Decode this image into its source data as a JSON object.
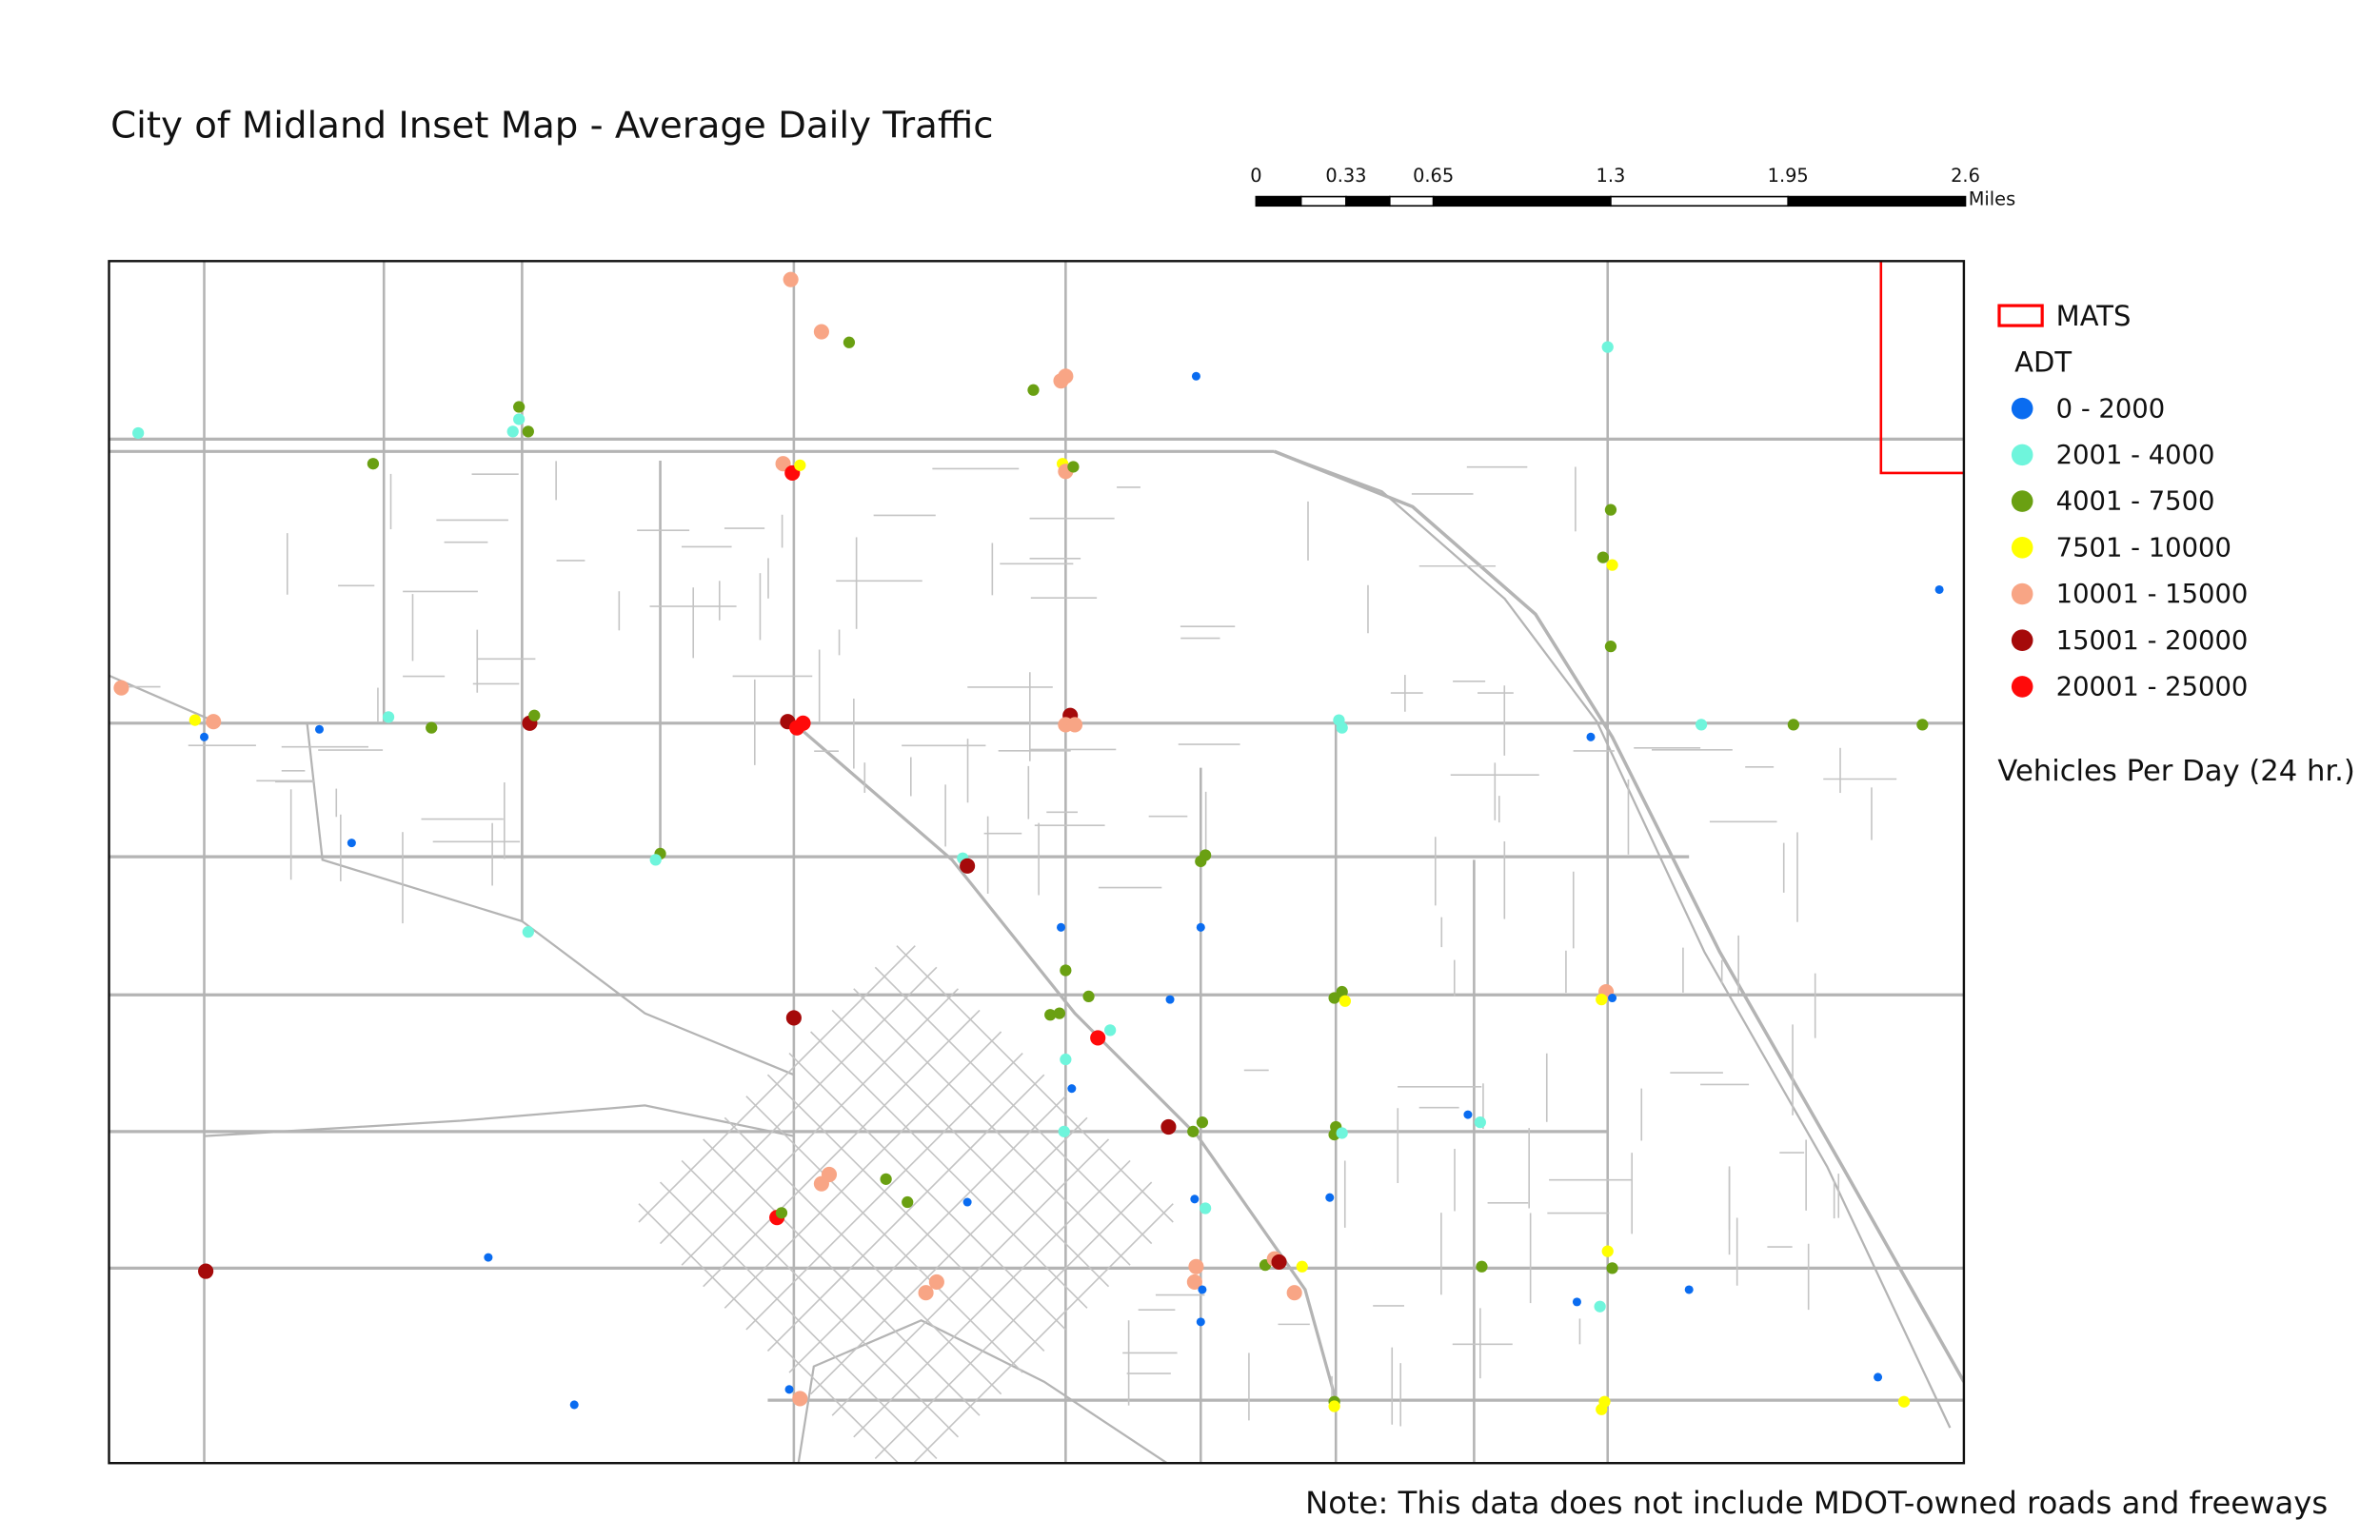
{
  "title": "City of Midland Inset Map - Average Daily Traffic",
  "scale_bar": {
    "ticks": [
      0,
      0.33,
      0.65,
      1.3,
      1.95,
      2.6
    ],
    "unit": "Miles"
  },
  "legend": {
    "boundary": {
      "label": "MATS",
      "color": "#ff0000"
    },
    "title": "ADT",
    "classes": [
      {
        "label": "0 - 2000",
        "color": "#0a6cf0"
      },
      {
        "label": "2001 - 4000",
        "color": "#6ff5dc"
      },
      {
        "label": "4001 - 7500",
        "color": "#6aa012"
      },
      {
        "label": "7501 - 10000",
        "color": "#ffff00"
      },
      {
        "label": "10001 - 15000",
        "color": "#f8a585"
      },
      {
        "label": "15001 - 20000",
        "color": "#a50a0a"
      },
      {
        "label": "20001 - 25000",
        "color": "#ff0a0a"
      }
    ],
    "unit_note": "Vehicles Per Day (24 hr.)"
  },
  "note": "Note: This data does not include MDOT-owned roads and freeways"
}
